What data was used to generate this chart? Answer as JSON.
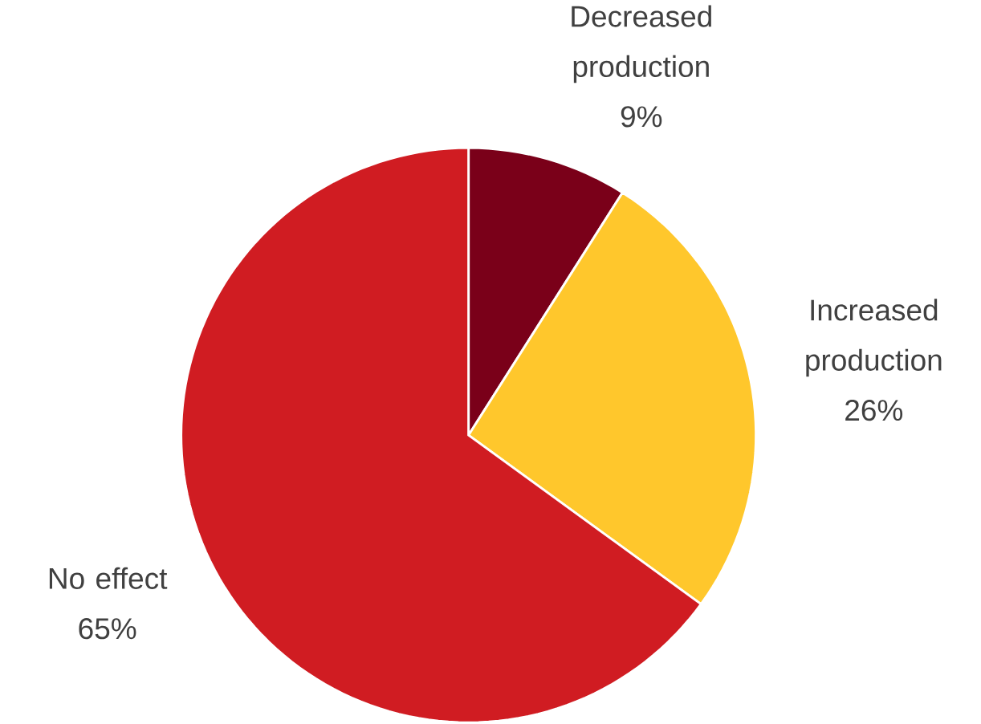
{
  "chart_data": {
    "type": "pie",
    "categories": [
      "Decreased production",
      "Increased production",
      "No effect"
    ],
    "values": [
      9,
      26,
      65
    ],
    "value_labels": [
      "9%",
      "26%",
      "65%"
    ],
    "colors": [
      "#7a0019",
      "#ffc72c",
      "#d01c22"
    ]
  }
}
